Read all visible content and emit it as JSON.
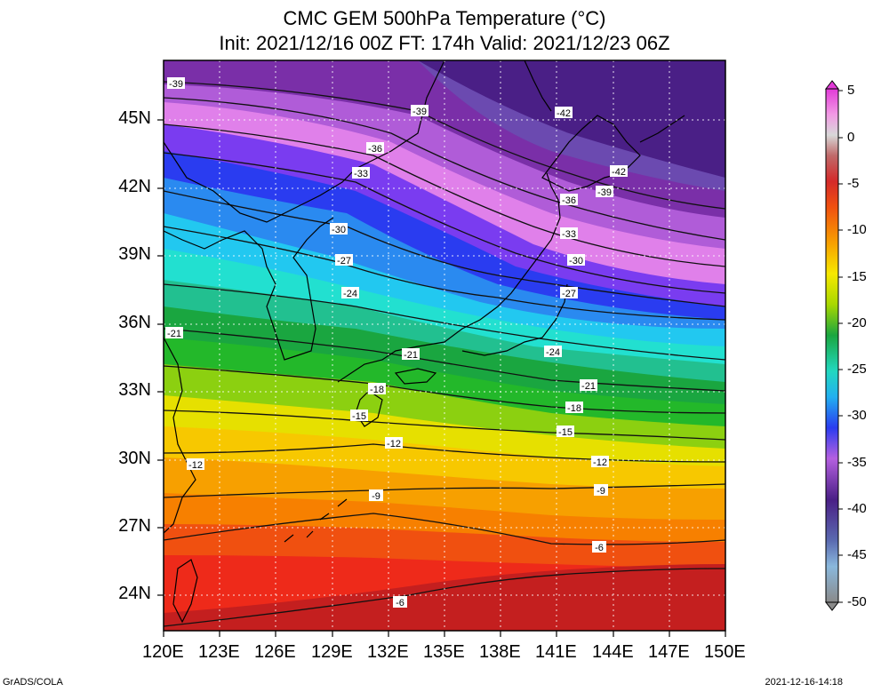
{
  "title_line1": "CMC GEM 500hPa Temperature (°C)",
  "title_line2": "Init: 2021/12/16 00Z  FT: 174h  Valid: 2021/12/23 06Z",
  "lat_labels": [
    "45N",
    "42N",
    "39N",
    "36N",
    "33N",
    "30N",
    "27N",
    "24N"
  ],
  "lon_labels": [
    "120E",
    "123E",
    "126E",
    "129E",
    "132E",
    "135E",
    "138E",
    "141E",
    "144E",
    "147E",
    "150E"
  ],
  "colorbar_labels": [
    "5",
    "0",
    "-5",
    "-10",
    "-15",
    "-20",
    "-25",
    "-30",
    "-35",
    "-40",
    "-45",
    "-50"
  ],
  "contour_labels": [
    "-39",
    "-39",
    "-42",
    "-36",
    "-33",
    "-42",
    "-39",
    "-36",
    "-30",
    "-33",
    "-27",
    "-30",
    "-24",
    "-27",
    "-21",
    "-24",
    "-21",
    "-21",
    "-18",
    "-18",
    "-15",
    "-15",
    "-12",
    "-12",
    "-12",
    "-9",
    "-9",
    "-6",
    "-6"
  ],
  "credit_left": "GrADS/COLA",
  "credit_right": "2021-12-16-14:18",
  "colors": {
    "ocean_purple": "#4a1f86",
    "cold_blue": "#2a3cf0",
    "cyan": "#22d8f0",
    "green": "#1aa640",
    "yellow": "#f7e000",
    "orange": "#f7a000",
    "red": "#ee2a1a",
    "dark_red": "#c41f1f"
  }
}
